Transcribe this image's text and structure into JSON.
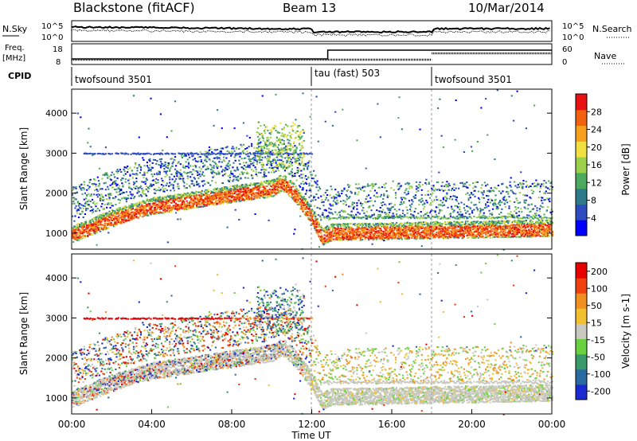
{
  "header": {
    "station": "Blackstone (fitACF)",
    "beam": "Beam 13",
    "date": "10/Mar/2014"
  },
  "summary": {
    "nsky_label": "N.Sky",
    "nsearch_label": "N.Search",
    "freq_label_1": "Freq.",
    "freq_label_2": "[MHz]",
    "nave_label": "Nave",
    "cpid_label": "CPID",
    "noise_ticks": [
      "10^5",
      "10^0"
    ],
    "freq_ticks": [
      "18",
      "8"
    ],
    "nave_ticks": [
      "60",
      "0"
    ],
    "cpid_segments": [
      {
        "start_hour": 0,
        "label": "twofsound 3501"
      },
      {
        "start_hour": 12,
        "label": "tau (fast) 503"
      },
      {
        "start_hour": 18,
        "label": "twofsound 3501"
      }
    ]
  },
  "chart_data": [
    {
      "type": "heatmap",
      "ylabel": "Slant Range [km]",
      "xlabel": "Time UT",
      "xlim_hours": [
        0,
        24
      ],
      "ylim_km": [
        600,
        4600
      ],
      "y_ticks": [
        1000,
        2000,
        3000,
        4000
      ],
      "colorbar": {
        "label": "Power [dB]",
        "ticks": [
          4,
          8,
          12,
          16,
          20,
          24,
          28
        ],
        "range": [
          0,
          32
        ],
        "colors": [
          "#0000ff",
          "#2c4cc0",
          "#2f7a8a",
          "#4caa5e",
          "#9ad04a",
          "#f2e040",
          "#f7a020",
          "#f26010",
          "#e81010"
        ]
      },
      "main_band_km": [
        [
          0,
          950
        ],
        [
          2,
          1350
        ],
        [
          4,
          1650
        ],
        [
          6,
          1800
        ],
        [
          8,
          1950
        ],
        [
          10,
          2100
        ],
        [
          10.5,
          2250
        ],
        [
          11,
          2050
        ],
        [
          12,
          1400
        ],
        [
          12.5,
          900
        ],
        [
          13,
          1000
        ],
        [
          18,
          1050
        ],
        [
          24,
          1100
        ]
      ]
    },
    {
      "type": "heatmap",
      "ylabel": "Slant Range [km]",
      "xlabel": "Time UT",
      "xlim_hours": [
        0,
        24
      ],
      "ylim_km": [
        600,
        4600
      ],
      "y_ticks": [
        1000,
        2000,
        3000,
        4000
      ],
      "x_ticks": [
        "00:00",
        "04:00",
        "08:00",
        "12:00",
        "16:00",
        "20:00",
        "00:00"
      ],
      "colorbar": {
        "label": "Velocity [m s-1]",
        "ticks": [
          200,
          100,
          50,
          15,
          -15,
          -50,
          -100,
          -200
        ],
        "colors": [
          "#1a2ad0",
          "#2a6aa0",
          "#3a9a6a",
          "#6ad040",
          "#c8c8c0",
          "#f0c030",
          "#f09020",
          "#f04010",
          "#e80000"
        ]
      }
    }
  ],
  "axis": {
    "xlabel": "Time UT",
    "x_ticks": [
      "00:00",
      "04:00",
      "08:00",
      "12:00",
      "16:00",
      "20:00",
      "00:00"
    ]
  }
}
